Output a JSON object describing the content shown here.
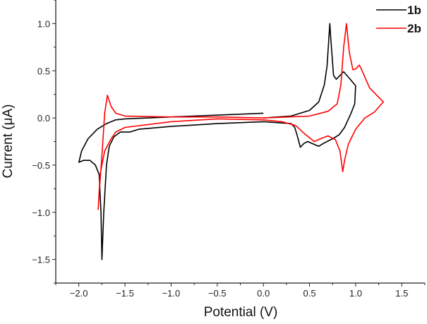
{
  "chart_data": {
    "type": "line",
    "title": "",
    "xlabel": "Potential (V)",
    "ylabel": "Current (μA)",
    "xlim": [
      -2.25,
      1.75
    ],
    "ylim": [
      -1.75,
      1.25
    ],
    "xticks": [
      "-2.0",
      "-1.5",
      "-1.0",
      "-0.5",
      "0.0",
      "0.5",
      "1.0",
      "1.5"
    ],
    "yticks": [
      "-1.5",
      "-1.0",
      "-0.5",
      "0.0",
      "0.5",
      "1.0"
    ],
    "grid": false,
    "legend_position": "top-right",
    "series": [
      {
        "name": "1b",
        "color": "#000000",
        "points": [
          [
            0,
            0.05
          ],
          [
            -0.5,
            0.03
          ],
          [
            -1.0,
            0.01
          ],
          [
            -1.5,
            -0.01
          ],
          [
            -1.6,
            -0.02
          ],
          [
            -1.7,
            -0.06
          ],
          [
            -1.8,
            -0.12
          ],
          [
            -1.9,
            -0.22
          ],
          [
            -1.97,
            -0.35
          ],
          [
            -2.0,
            -0.47
          ],
          [
            -1.95,
            -0.45
          ],
          [
            -1.88,
            -0.45
          ],
          [
            -1.82,
            -0.5
          ],
          [
            -1.78,
            -0.6
          ],
          [
            -1.76,
            -1.0
          ],
          [
            -1.75,
            -1.5
          ],
          [
            -1.73,
            -1.0
          ],
          [
            -1.7,
            -0.5
          ],
          [
            -1.67,
            -0.3
          ],
          [
            -1.62,
            -0.2
          ],
          [
            -1.55,
            -0.15
          ],
          [
            -1.45,
            -0.15
          ],
          [
            -1.35,
            -0.12
          ],
          [
            -1.0,
            -0.09
          ],
          [
            -0.5,
            -0.06
          ],
          [
            0,
            -0.04
          ],
          [
            0.3,
            -0.06
          ],
          [
            0.34,
            -0.1
          ],
          [
            0.37,
            -0.2
          ],
          [
            0.4,
            -0.31
          ],
          [
            0.44,
            -0.27
          ],
          [
            0.48,
            -0.25
          ],
          [
            0.55,
            -0.28
          ],
          [
            0.6,
            -0.3
          ],
          [
            0.65,
            -0.27
          ],
          [
            0.75,
            -0.22
          ],
          [
            0.82,
            -0.18
          ],
          [
            0.88,
            -0.1
          ],
          [
            0.95,
            0.05
          ],
          [
            0.99,
            0.15
          ],
          [
            1.0,
            0.34
          ],
          [
            0.95,
            0.4
          ],
          [
            0.87,
            0.49
          ],
          [
            0.83,
            0.45
          ],
          [
            0.79,
            0.41
          ],
          [
            0.76,
            0.45
          ],
          [
            0.73,
            0.85
          ],
          [
            0.72,
            1.0
          ],
          [
            0.71,
            0.85
          ],
          [
            0.69,
            0.55
          ],
          [
            0.66,
            0.35
          ],
          [
            0.6,
            0.17
          ],
          [
            0.5,
            0.08
          ],
          [
            0.3,
            0.02
          ],
          [
            0.0,
            0.0
          ]
        ]
      },
      {
        "name": "2b",
        "color": "#ff0000",
        "points": [
          [
            0,
            0.0
          ],
          [
            -0.5,
            0.01
          ],
          [
            -1.0,
            0.01
          ],
          [
            -1.5,
            0.02
          ],
          [
            -1.6,
            0.05
          ],
          [
            -1.65,
            0.12
          ],
          [
            -1.69,
            0.24
          ],
          [
            -1.72,
            0.05
          ],
          [
            -1.75,
            -0.4
          ],
          [
            -1.78,
            -0.8
          ],
          [
            -1.79,
            -0.97
          ],
          [
            -1.77,
            -0.6
          ],
          [
            -1.72,
            -0.35
          ],
          [
            -1.65,
            -0.22
          ],
          [
            -1.6,
            -0.15
          ],
          [
            -1.5,
            -0.1
          ],
          [
            -1.0,
            -0.04
          ],
          [
            -0.5,
            -0.01
          ],
          [
            0,
            -0.02
          ],
          [
            0.2,
            -0.04
          ],
          [
            0.35,
            -0.08
          ],
          [
            0.45,
            -0.17
          ],
          [
            0.55,
            -0.25
          ],
          [
            0.62,
            -0.22
          ],
          [
            0.7,
            -0.19
          ],
          [
            0.78,
            -0.23
          ],
          [
            0.83,
            -0.35
          ],
          [
            0.86,
            -0.57
          ],
          [
            0.88,
            -0.45
          ],
          [
            0.92,
            -0.28
          ],
          [
            1.0,
            -0.12
          ],
          [
            1.1,
            0.0
          ],
          [
            1.2,
            0.06
          ],
          [
            1.3,
            0.17
          ],
          [
            1.25,
            0.22
          ],
          [
            1.15,
            0.32
          ],
          [
            1.07,
            0.5
          ],
          [
            1.04,
            0.56
          ],
          [
            1.0,
            0.52
          ],
          [
            0.97,
            0.51
          ],
          [
            0.93,
            0.7
          ],
          [
            0.9,
            1.0
          ],
          [
            0.87,
            0.75
          ],
          [
            0.84,
            0.35
          ],
          [
            0.8,
            0.15
          ],
          [
            0.7,
            0.07
          ],
          [
            0.5,
            0.02
          ],
          [
            0,
            0.0
          ]
        ]
      }
    ]
  }
}
